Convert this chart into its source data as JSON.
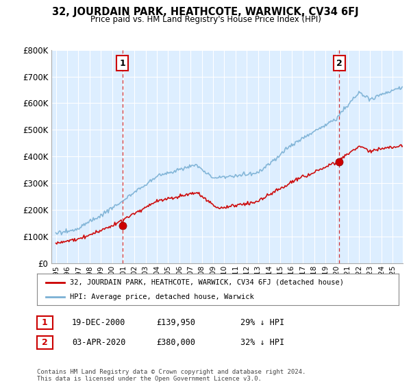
{
  "title": "32, JOURDAIN PARK, HEATHCOTE, WARWICK, CV34 6FJ",
  "subtitle": "Price paid vs. HM Land Registry's House Price Index (HPI)",
  "legend_line1": "32, JOURDAIN PARK, HEATHCOTE, WARWICK, CV34 6FJ (detached house)",
  "legend_line2": "HPI: Average price, detached house, Warwick",
  "annotation1_date": "19-DEC-2000",
  "annotation1_price": "£139,950",
  "annotation1_hpi": "29% ↓ HPI",
  "annotation2_date": "03-APR-2020",
  "annotation2_price": "£380,000",
  "annotation2_hpi": "32% ↓ HPI",
  "footer": "Contains HM Land Registry data © Crown copyright and database right 2024.\nThis data is licensed under the Open Government Licence v3.0.",
  "hpi_color": "#7ab0d4",
  "price_color": "#cc0000",
  "annotation_color": "#cc0000",
  "vline_color": "#cc0000",
  "plot_bg_color": "#ddeeff",
  "ylim": [
    0,
    800000
  ],
  "yticks": [
    0,
    100000,
    200000,
    300000,
    400000,
    500000,
    600000,
    700000,
    800000
  ],
  "background_color": "#ffffff",
  "grid_color": "#ffffff"
}
